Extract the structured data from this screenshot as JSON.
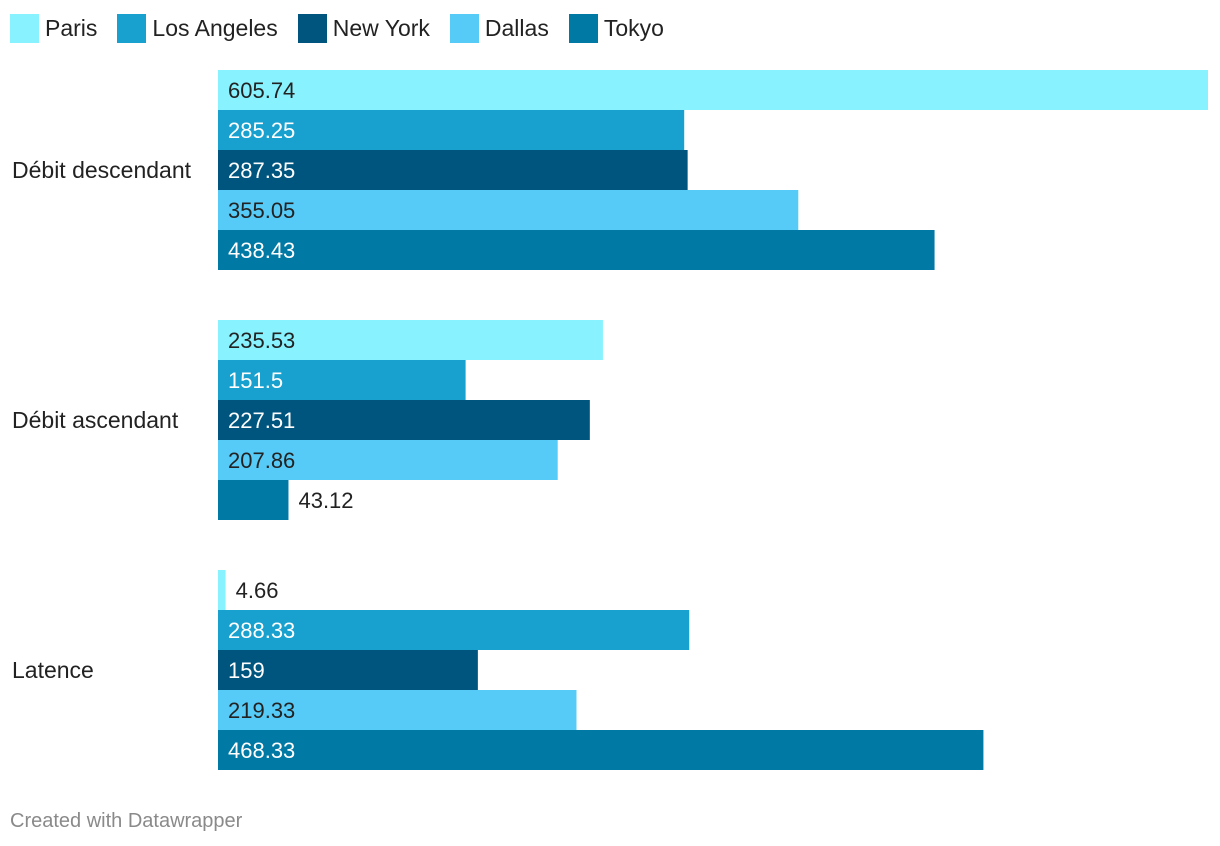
{
  "chart_data": {
    "type": "bar",
    "orientation": "horizontal",
    "categories": [
      "Débit descendant",
      "Débit ascendant",
      "Latence"
    ],
    "series": [
      {
        "name": "Paris",
        "color": "#88f3fe",
        "values": [
          605.74,
          235.53,
          4.66
        ]
      },
      {
        "name": "Los Angeles",
        "color": "#18a1ce",
        "values": [
          285.25,
          151.5,
          288.33
        ]
      },
      {
        "name": "New York",
        "color": "#00557f",
        "values": [
          287.35,
          227.51,
          159
        ]
      },
      {
        "name": "Dallas",
        "color": "#57cbf7",
        "values": [
          355.05,
          207.86,
          219.33
        ]
      },
      {
        "name": "Tokyo",
        "color": "#0079a5",
        "values": [
          438.43,
          43.12,
          468.33
        ]
      }
    ],
    "xlim": [
      0,
      605.74
    ],
    "grid": false,
    "legend": "top-left",
    "footer": "Created with Datawrapper"
  }
}
